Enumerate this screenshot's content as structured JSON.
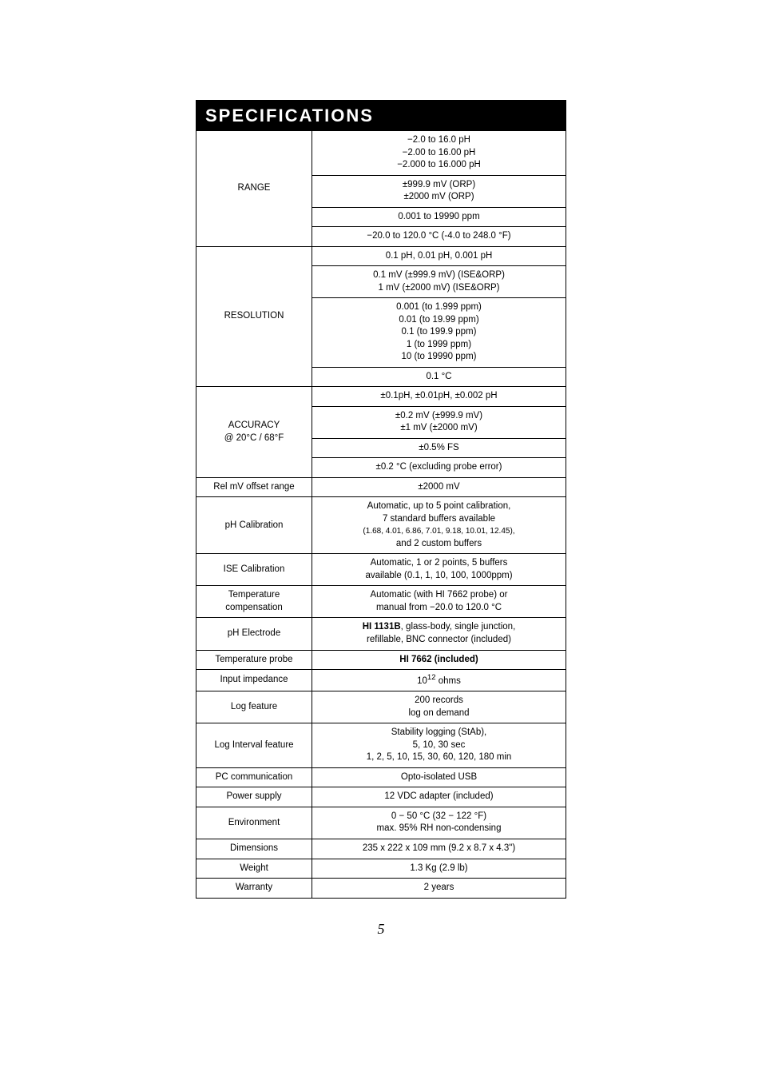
{
  "title": "SPECIFICATIONS",
  "page_number": "5",
  "rows": [
    {
      "label": "RANGE",
      "cells": [
        "−2.0 to 16.0 pH\n−2.00 to 16.00 pH\n−2.000 to 16.000 pH",
        "±999.9 mV (ORP)\n±2000 mV (ORP)",
        "0.001 to 19990 ppm",
        "−20.0 to 120.0 °C (-4.0 to 248.0 °F)"
      ]
    },
    {
      "label": "RESOLUTION",
      "cells": [
        "0.1 pH, 0.01 pH, 0.001 pH",
        "0.1 mV (±999.9 mV) (ISE&ORP)\n1 mV (±2000 mV) (ISE&ORP)",
        "0.001 (to 1.999 ppm)\n0.01 (to 19.99 ppm)\n0.1 (to 199.9 ppm)\n1 (to 1999 ppm)\n10 (to 19990 ppm)",
        "0.1 °C"
      ]
    },
    {
      "label": "ACCURACY\n@ 20°C / 68°F",
      "cells": [
        "±0.1pH, ±0.01pH, ±0.002 pH",
        "±0.2 mV (±999.9 mV)\n±1 mV (±2000 mV)",
        "±0.5% FS",
        "±0.2 °C (excluding probe error)"
      ]
    },
    {
      "label": "Rel mV offset range",
      "cells": [
        "±2000 mV"
      ]
    },
    {
      "label": "pH Calibration",
      "cells": [
        {
          "lines": [
            {
              "text": "Automatic, up to 5 point calibration,",
              "cls": ""
            },
            {
              "text": "7 standard buffers available",
              "cls": ""
            },
            {
              "text": "(1.68, 4.01, 6.86, 7.01, 9.18, 10.01, 12.45),",
              "cls": "sub"
            },
            {
              "text": "and 2 custom buffers",
              "cls": ""
            }
          ]
        }
      ]
    },
    {
      "label": "ISE Calibration",
      "cells": [
        "Automatic, 1 or 2 points, 5 buffers\navailable (0.1, 1, 10, 100, 1000ppm)"
      ]
    },
    {
      "label": "Temperature\ncompensation",
      "cells": [
        "Automatic (with HI 7662 probe) or\nmanual from −20.0 to 120.0 °C"
      ]
    },
    {
      "label": "pH Electrode",
      "cells": [
        {
          "lines": [
            {
              "text": "HI 1131B",
              "cls": "bold",
              "inline_after": ", glass-body, single junction,"
            },
            {
              "text": "refillable, BNC connector (included)",
              "cls": ""
            }
          ]
        }
      ]
    },
    {
      "label": "Temperature probe",
      "cells": [
        {
          "lines": [
            {
              "text": "HI 7662 (included)",
              "cls": "bold"
            }
          ]
        }
      ]
    },
    {
      "label": "Input impedance",
      "cells": [
        {
          "html": "10<sup>12</sup> ohms"
        }
      ]
    },
    {
      "label": "Log feature",
      "cells": [
        "200 records\nlog on demand"
      ]
    },
    {
      "label": "Log Interval feature",
      "cells": [
        "Stability logging (StAb),\n5, 10, 30 sec\n1, 2, 5, 10, 15, 30, 60, 120, 180 min"
      ]
    },
    {
      "label": "PC communication",
      "cells": [
        "Opto-isolated USB"
      ]
    },
    {
      "label": "Power supply",
      "cells": [
        "12 VDC adapter (included)"
      ]
    },
    {
      "label": "Environment",
      "cells": [
        "0 − 50 °C (32 − 122 °F)\nmax. 95% RH non-condensing"
      ]
    },
    {
      "label": "Dimensions",
      "cells": [
        "235 x 222 x 109 mm (9.2 x 8.7 x 4.3\")"
      ]
    },
    {
      "label": "Weight",
      "cells": [
        "1.3 Kg (2.9 lb)"
      ]
    },
    {
      "label": "Warranty",
      "cells": [
        "2 years"
      ]
    }
  ]
}
